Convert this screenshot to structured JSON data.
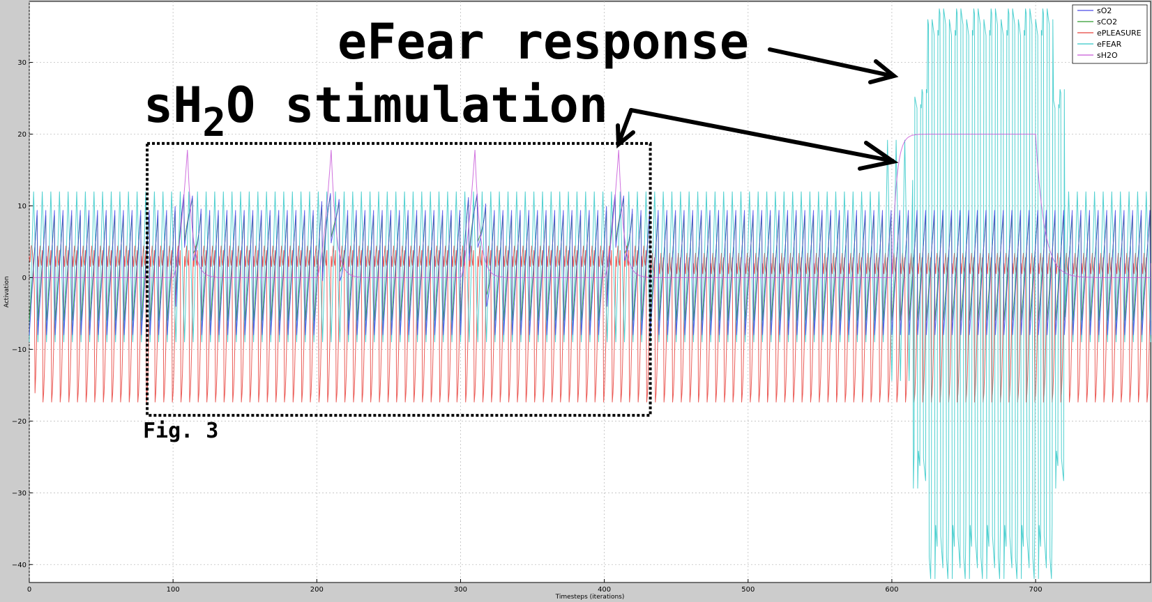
{
  "chart_data": {
    "type": "line",
    "xlabel": "Timesteps (iterations)",
    "ylabel": "Activation",
    "xlim": [
      0,
      780
    ],
    "ylim": [
      -42.5,
      38.5
    ],
    "xticks": [
      0,
      100,
      200,
      300,
      400,
      500,
      600,
      700
    ],
    "yticks": [
      -40,
      -30,
      -20,
      -10,
      0,
      10,
      20,
      30
    ],
    "grid": true,
    "legend_position": "top-right",
    "series": [
      {
        "name": "sO2",
        "color": "#4a4ae8",
        "pattern": "sawtooth",
        "period": 6,
        "low": -8,
        "high": 11
      },
      {
        "name": "sCO2",
        "color": "#2e9a2e",
        "pattern": "sawtooth",
        "period": 6,
        "low": -6,
        "high": 10
      },
      {
        "name": "ePLEASURE",
        "color": "#e8403a",
        "pattern": "oscillation",
        "period": 6,
        "low_early": -17.5,
        "high_early": 3,
        "low_late": -17.5,
        "high_late": 2
      },
      {
        "name": "eFEAR",
        "color": "#30c8c8",
        "pattern": "oscillation",
        "period": 6,
        "low": -9,
        "high": 12,
        "burst_x_range": [
          615,
          720
        ],
        "burst_low": -42,
        "burst_high": 37.5
      },
      {
        "name": "sH2O",
        "color": "#c858d8",
        "pattern": "pulses",
        "baseline": 0,
        "pulses": [
          {
            "start": 100,
            "peak_x": 110,
            "peak": 17.8,
            "trough": -12.5
          },
          {
            "start": 200,
            "peak_x": 210,
            "peak": 17.8,
            "trough": -11.5
          },
          {
            "start": 300,
            "peak_x": 310,
            "peak": 17.8,
            "trough": -11.5
          },
          {
            "start": 400,
            "peak_x": 410,
            "peak": 17.8,
            "trough": -11.5
          }
        ],
        "plateau": {
          "start": 600,
          "end": 700,
          "value": 20
        }
      }
    ],
    "annotations": [
      {
        "text": "eFear response"
      },
      {
        "text_main": "sH",
        "text_sub": "2",
        "text_tail": "O stimulation"
      },
      {
        "text": "Fig. 3"
      }
    ],
    "highlight_box_x": [
      82,
      432
    ],
    "highlight_box_y": [
      -19.2,
      18.7
    ]
  }
}
